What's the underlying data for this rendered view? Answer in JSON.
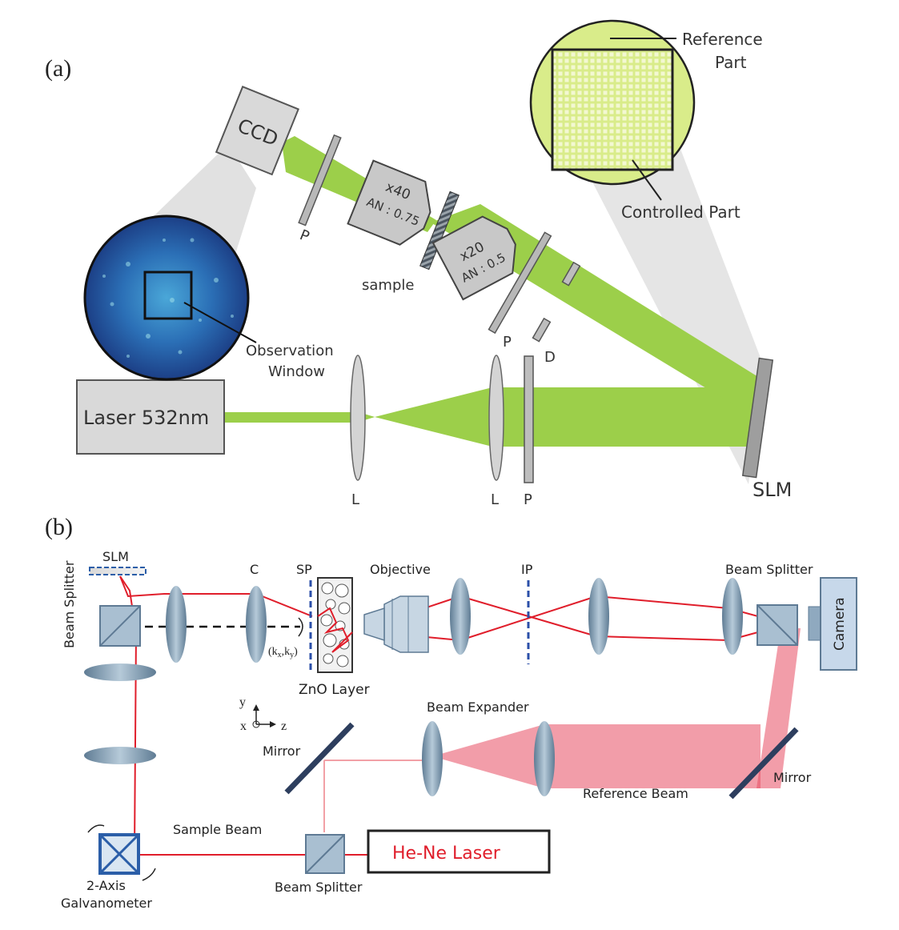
{
  "panel_a": {
    "label": "(a)",
    "ccd": "CCD",
    "laser": "Laser 532nm",
    "obj40_mag": "x40",
    "obj40_na": "AN : 0.75",
    "obj20_mag": "x20",
    "obj20_na": "AN : 0.5",
    "sample": "sample",
    "p": "P",
    "d": "D",
    "l": "L",
    "slm": "SLM",
    "reference_part_1": "Reference",
    "reference_part_2": "Part",
    "controlled_part": "Controlled Part",
    "observation_1": "Observation",
    "observation_2": "Window"
  },
  "panel_b": {
    "label": "(b)",
    "slm": "SLM",
    "beam_splitter": "Beam Splitter",
    "c": "C",
    "sp": "SP",
    "objective": "Objective",
    "ip": "IP",
    "camera": "Camera",
    "k_open": "(k",
    "k_x": "x",
    "k_mid": ",k",
    "k_y": "y",
    "zno": "ZnO Layer",
    "axis_y": "y",
    "axis_x": "x",
    "axis_z": "z",
    "mirror": "Mirror",
    "beam_expander": "Beam Expander",
    "reference_beam": "Reference Beam",
    "sample_beam": "Sample Beam",
    "he_ne": "He-Ne Laser",
    "galvo_1": "2-Axis",
    "galvo_2": "Galvanometer"
  },
  "colors": {
    "beam_green": "#9ccf4a",
    "beam_red": "#e01e2b",
    "device_gray": "#d9d9d9",
    "optic_blue": "#8fa9bf"
  }
}
